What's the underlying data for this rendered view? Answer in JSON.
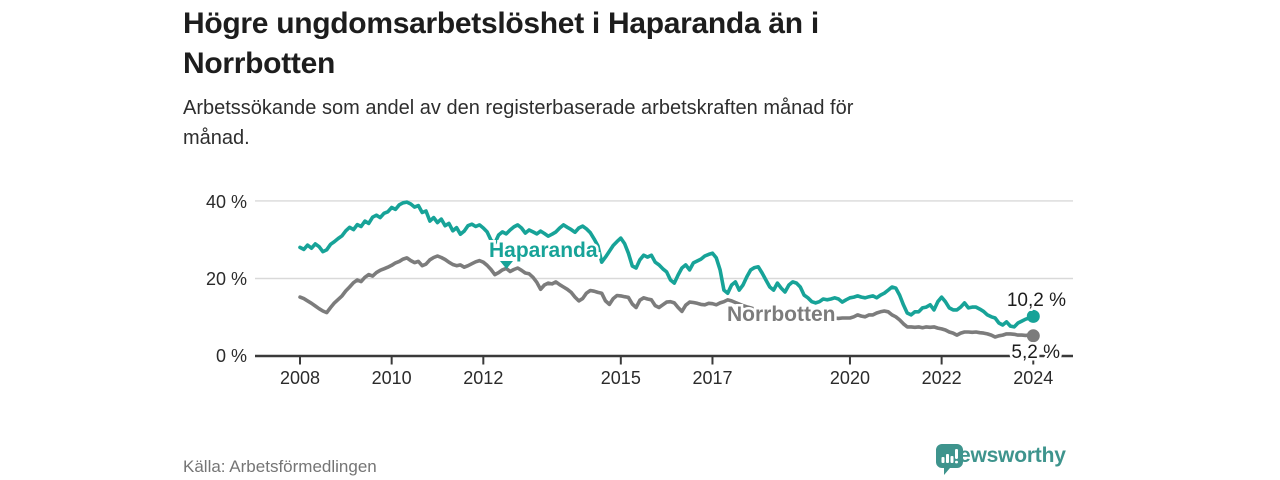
{
  "header": {
    "title_lines": [
      "Högre ungdomsarbetslöshet i Haparanda än i",
      "Norrbotten"
    ],
    "subtitle_lines": [
      "Arbetssökande som andel av den registerbaserade arbetskraften månad för",
      "månad."
    ]
  },
  "footer": {
    "source": "Källa: Arbetsförmedlingen",
    "brand": "Newsworthy"
  },
  "colors": {
    "haparanda": "#17a398",
    "norrbotten": "#7c7c7c",
    "grid": "#d9d9d9",
    "axis": "#3a3a3a",
    "text": "#1d1d1d",
    "muted": "#757575",
    "brand_teal": "#3e948d"
  },
  "chart_data": {
    "type": "line",
    "title": "Högre ungdomsarbetslöshet i Haparanda än i Norrbotten",
    "subtitle": "Arbetssökande som andel av den registerbaserade arbetskraften månad för månad.",
    "xlabel": "",
    "ylabel": "",
    "x_unit": "month",
    "x_start": "2008-01",
    "x_end": "2024-01",
    "x_ticks": [
      2008,
      2010,
      2012,
      2015,
      2017,
      2020,
      2022,
      2024
    ],
    "x_tick_labels": [
      "2008",
      "2010",
      "2012",
      "2015",
      "2017",
      "2020",
      "2022",
      "2024"
    ],
    "y_ticks": [
      0,
      20,
      40
    ],
    "y_tick_labels": [
      "0 %",
      "20 %",
      "40 %"
    ],
    "ylim": [
      0,
      44
    ],
    "grid": "horizontal",
    "legend_position": "inline-labels",
    "series": [
      {
        "name": "Haparanda",
        "color": "#17a398",
        "end_label": "10,2 %",
        "end_value": 10.2,
        "values": [
          28.0,
          27.5,
          28.6,
          27.8,
          28.9,
          28.2,
          26.9,
          27.4,
          28.8,
          29.5,
          30.3,
          31.0,
          32.3,
          33.2,
          32.6,
          33.9,
          33.4,
          34.8,
          34.2,
          35.8,
          36.3,
          35.7,
          36.8,
          37.2,
          38.3,
          37.8,
          39.0,
          39.5,
          39.7,
          39.2,
          38.4,
          38.8,
          37.0,
          37.4,
          34.8,
          35.7,
          34.4,
          35.3,
          33.6,
          34.2,
          32.3,
          33.1,
          31.4,
          32.2,
          33.6,
          34.0,
          33.4,
          33.8,
          33.0,
          32.0,
          29.9,
          29.1,
          31.2,
          32.0,
          31.5,
          32.5,
          33.3,
          33.8,
          33.0,
          31.7,
          32.5,
          32.0,
          31.5,
          32.2,
          31.6,
          30.9,
          31.4,
          32.0,
          33.0,
          33.8,
          33.2,
          32.6,
          31.9,
          33.0,
          33.5,
          32.8,
          31.8,
          30.2,
          28.4,
          24.2,
          25.5,
          27.0,
          28.5,
          29.5,
          30.4,
          29.0,
          26.5,
          23.2,
          22.7,
          24.8,
          26.0,
          25.5,
          26.0,
          24.2,
          23.5,
          22.5,
          21.7,
          19.6,
          18.8,
          20.9,
          22.7,
          23.5,
          22.2,
          24.0,
          24.5,
          25.0,
          25.8,
          26.2,
          26.5,
          25.3,
          22.2,
          17.0,
          16.2,
          18.3,
          19.1,
          17.0,
          18.3,
          20.4,
          22.2,
          22.8,
          23.0,
          21.4,
          19.6,
          17.8,
          17.0,
          18.8,
          17.5,
          16.5,
          18.3,
          19.1,
          18.8,
          17.8,
          15.7,
          15.0,
          14.0,
          13.7,
          14.0,
          14.7,
          14.5,
          14.7,
          15.0,
          14.7,
          13.9,
          14.5,
          15.0,
          15.2,
          15.5,
          15.2,
          15.0,
          15.3,
          15.5,
          15.0,
          15.7,
          16.2,
          17.0,
          17.8,
          17.5,
          15.7,
          13.2,
          11.1,
          10.6,
          11.4,
          11.4,
          12.4,
          12.6,
          13.2,
          11.9,
          14.0,
          15.2,
          14.0,
          12.4,
          11.9,
          11.9,
          12.6,
          13.7,
          12.4,
          12.6,
          12.6,
          12.1,
          11.5,
          10.6,
          10.1,
          9.8,
          8.5,
          8.0,
          8.8,
          7.7,
          7.5,
          8.5,
          9.0,
          9.5,
          9.8,
          10.2
        ]
      },
      {
        "name": "Norrbotten",
        "color": "#7c7c7c",
        "end_label": "5,2 %",
        "end_value": 5.2,
        "values": [
          15.2,
          14.8,
          14.2,
          13.6,
          12.9,
          12.2,
          11.6,
          11.2,
          12.5,
          13.7,
          14.6,
          15.5,
          16.8,
          17.8,
          18.9,
          19.6,
          19.2,
          20.3,
          21.0,
          20.6,
          21.5,
          22.1,
          22.5,
          22.9,
          23.4,
          24.0,
          24.4,
          25.0,
          25.3,
          24.6,
          24.1,
          24.4,
          23.3,
          23.7,
          24.8,
          25.4,
          25.8,
          25.4,
          24.9,
          24.2,
          23.6,
          23.3,
          23.5,
          22.9,
          23.3,
          23.8,
          24.3,
          24.6,
          24.2,
          23.4,
          22.3,
          21.0,
          21.5,
          22.2,
          22.6,
          21.8,
          22.3,
          22.7,
          22.1,
          21.4,
          21.2,
          20.3,
          19.0,
          17.2,
          18.3,
          18.8,
          18.6,
          19.1,
          18.4,
          17.8,
          17.2,
          16.4,
          15.2,
          14.2,
          14.8,
          16.2,
          16.9,
          16.7,
          16.4,
          16.2,
          14.2,
          13.3,
          14.8,
          15.6,
          15.5,
          15.3,
          15.1,
          13.4,
          12.5,
          14.4,
          15.0,
          14.7,
          14.5,
          13.0,
          12.5,
          13.2,
          13.9,
          14.0,
          13.7,
          12.5,
          11.5,
          13.1,
          13.9,
          13.8,
          13.6,
          13.3,
          13.2,
          13.6,
          13.5,
          13.2,
          13.7,
          14.0,
          14.5,
          14.2,
          13.8,
          13.4,
          13.0,
          12.7,
          12.4,
          12.1,
          11.9,
          11.7,
          11.5,
          11.3,
          11.2,
          11.1,
          11.0,
          10.9,
          10.8,
          10.7,
          10.6,
          10.5,
          10.4,
          10.3,
          10.2,
          10.1,
          10.0,
          9.9,
          9.9,
          9.8,
          9.8,
          9.7,
          9.8,
          9.8,
          9.8,
          10.1,
          10.6,
          10.3,
          10.1,
          10.6,
          10.6,
          11.1,
          11.4,
          11.6,
          11.4,
          10.6,
          10.1,
          9.3,
          8.3,
          7.5,
          7.5,
          7.4,
          7.5,
          7.3,
          7.5,
          7.4,
          7.5,
          7.2,
          7.0,
          6.7,
          6.2,
          5.9,
          5.4,
          5.9,
          6.2,
          6.2,
          6.1,
          6.2,
          6.0,
          5.9,
          5.7,
          5.4,
          4.9,
          5.2,
          5.4,
          5.7,
          5.7,
          5.6,
          5.4,
          5.4,
          5.3,
          5.4,
          5.2
        ]
      }
    ]
  }
}
